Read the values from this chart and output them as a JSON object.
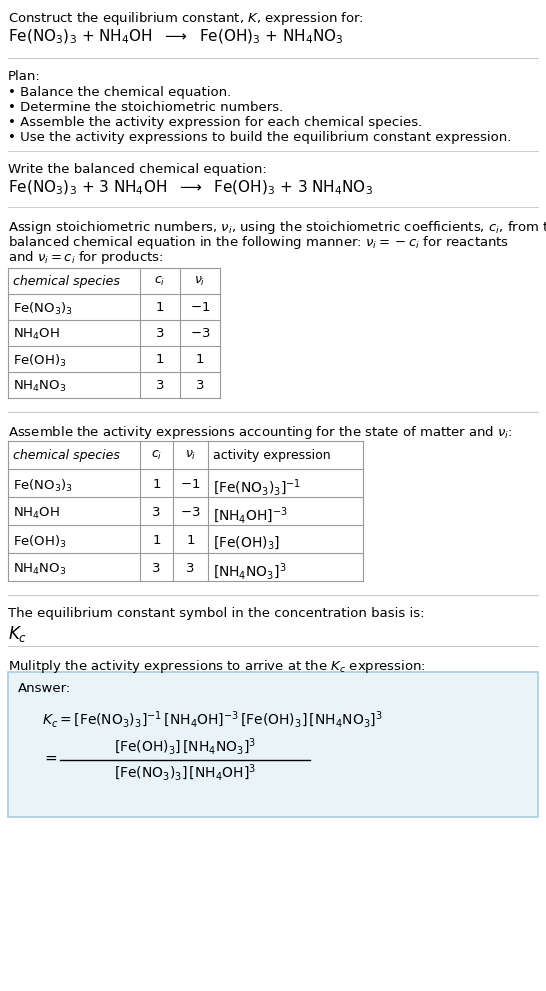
{
  "bg_color": "#ffffff",
  "text_color": "#000000",
  "title_line1": "Construct the equilibrium constant, $K$, expression for:",
  "title_line2": "Fe(NO$_3$)$_3$ + NH$_4$OH  $\\longrightarrow$  Fe(OH)$_3$ + NH$_4$NO$_3$",
  "plan_header": "Plan:",
  "plan_bullets": [
    "• Balance the chemical equation.",
    "• Determine the stoichiometric numbers.",
    "• Assemble the activity expression for each chemical species.",
    "• Use the activity expressions to build the equilibrium constant expression."
  ],
  "balanced_header": "Write the balanced chemical equation:",
  "balanced_eq": "Fe(NO$_3$)$_3$ + 3 NH$_4$OH  $\\longrightarrow$  Fe(OH)$_3$ + 3 NH$_4$NO$_3$",
  "stoich_intro_lines": [
    "Assign stoichiometric numbers, $\\nu_i$, using the stoichiometric coefficients, $c_i$, from the",
    "balanced chemical equation in the following manner: $\\nu_i = -c_i$ for reactants",
    "and $\\nu_i = c_i$ for products:"
  ],
  "table1_headers": [
    "chemical species",
    "$c_i$",
    "$\\nu_i$"
  ],
  "table1_rows": [
    [
      "Fe(NO$_3$)$_3$",
      "1",
      "$-$1"
    ],
    [
      "NH$_4$OH",
      "3",
      "$-$3"
    ],
    [
      "Fe(OH)$_3$",
      "1",
      "1"
    ],
    [
      "NH$_4$NO$_3$",
      "3",
      "3"
    ]
  ],
  "assemble_intro": "Assemble the activity expressions accounting for the state of matter and $\\nu_i$:",
  "table2_headers": [
    "chemical species",
    "$c_i$",
    "$\\nu_i$",
    "activity expression"
  ],
  "table2_rows": [
    [
      "Fe(NO$_3$)$_3$",
      "1",
      "$-$1",
      "[Fe(NO$_3$)$_3$]$^{-1}$"
    ],
    [
      "NH$_4$OH",
      "3",
      "$-$3",
      "[NH$_4$OH]$^{-3}$"
    ],
    [
      "Fe(OH)$_3$",
      "1",
      "1",
      "[Fe(OH)$_3$]"
    ],
    [
      "NH$_4$NO$_3$",
      "3",
      "3",
      "[NH$_4$NO$_3$]$^3$"
    ]
  ],
  "kc_header": "The equilibrium constant symbol in the concentration basis is:",
  "kc_symbol": "$K_c$",
  "multiply_header": "Mulitply the activity expressions to arrive at the $K_c$ expression:",
  "answer_label": "Answer:",
  "answer_box_bg": "#e8f4f8",
  "answer_box_border": "#aaccdd",
  "separator_color": "#cccccc",
  "table_line_color": "#999999"
}
